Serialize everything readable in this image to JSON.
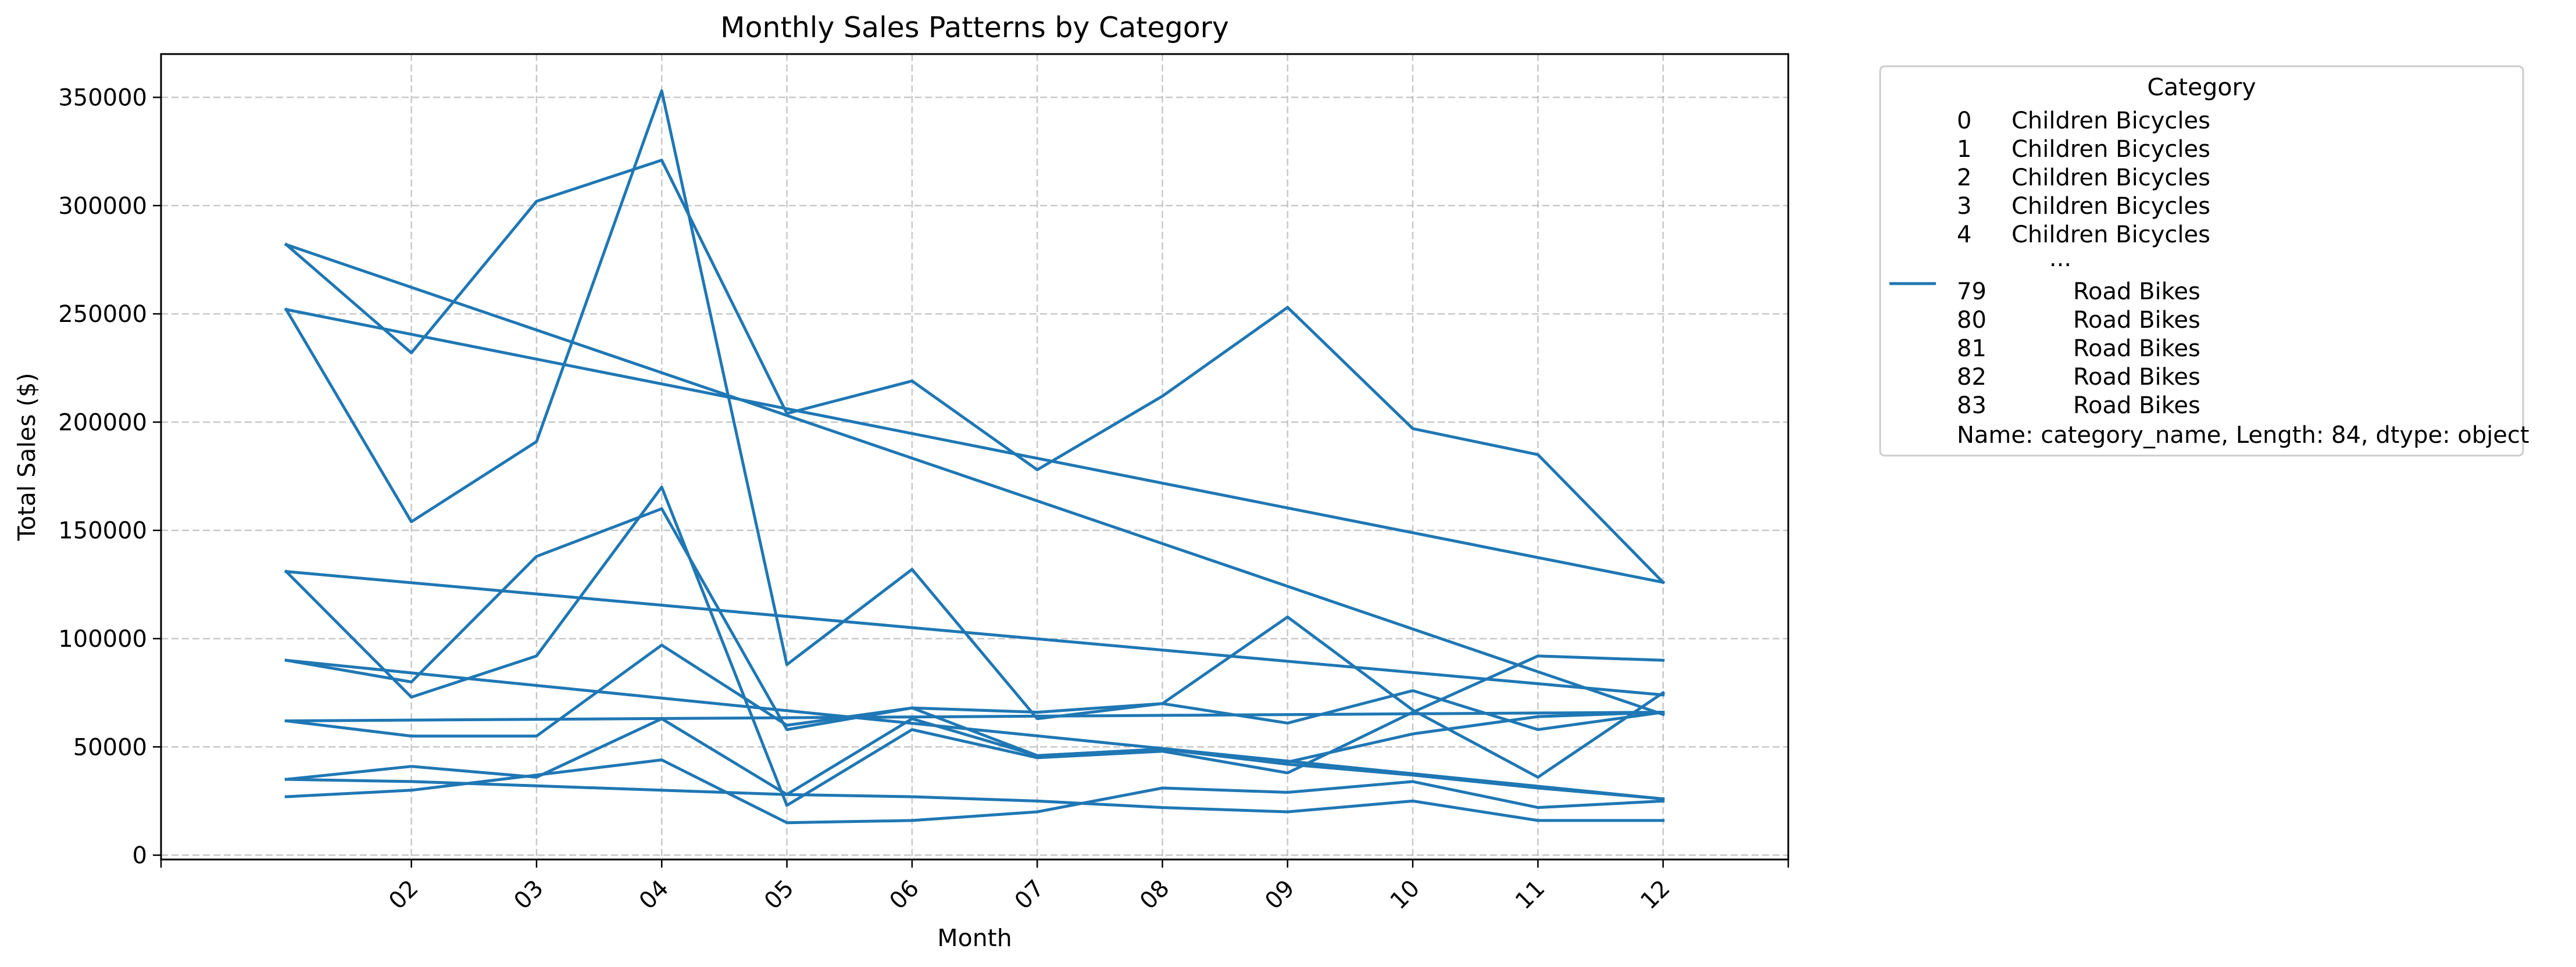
{
  "chart_data": {
    "type": "line",
    "title": "Monthly Sales Patterns by Category",
    "xlabel": "Month",
    "ylabel": "Total Sales ($)",
    "x_tick_labels": [
      "02",
      "03",
      "04",
      "05",
      "06",
      "07",
      "08",
      "09",
      "10",
      "11",
      "12"
    ],
    "x_tick_rotation_deg": 45,
    "xlim": [
      0,
      13
    ],
    "y_ticks": [
      0,
      50000,
      100000,
      150000,
      200000,
      250000,
      300000,
      350000
    ],
    "ylim": [
      -2000,
      370000
    ],
    "grid": true,
    "grid_style": "dashed",
    "line_color": "#1f77b4",
    "legend": {
      "title": "Category",
      "placement": "outside-right",
      "rows": [
        {
          "index": "0",
          "name": "Children Bicycles"
        },
        {
          "index": "1",
          "name": "Children Bicycles"
        },
        {
          "index": "2",
          "name": "Children Bicycles"
        },
        {
          "index": "3",
          "name": "Children Bicycles"
        },
        {
          "index": "4",
          "name": "Children Bicycles"
        },
        {
          "index": "",
          "name": "..."
        },
        {
          "index": "79",
          "name": "Road Bikes"
        },
        {
          "index": "80",
          "name": "Road Bikes"
        },
        {
          "index": "81",
          "name": "Road Bikes"
        },
        {
          "index": "82",
          "name": "Road Bikes"
        },
        {
          "index": "83",
          "name": "Road Bikes"
        }
      ],
      "footer": "Name: category_name, Length: 84, dtype: object"
    },
    "series": [
      {
        "x": [
          1,
          12
        ],
        "y": [
          282000,
          65000
        ]
      },
      {
        "x": [
          1,
          2,
          3,
          4,
          5,
          6,
          7,
          8,
          9,
          10,
          11,
          12
        ],
        "y": [
          252000,
          154000,
          191000,
          353000,
          88000,
          132000,
          63000,
          70000,
          61000,
          76000,
          58000,
          66000
        ]
      },
      {
        "x": [
          1,
          2,
          3,
          4,
          5,
          6,
          7,
          8,
          9,
          10,
          11,
          12
        ],
        "y": [
          282000,
          232000,
          302000,
          321000,
          204000,
          219000,
          178000,
          212000,
          253000,
          197000,
          185000,
          126000
        ]
      },
      {
        "x": [
          1,
          12
        ],
        "y": [
          252000,
          126000
        ]
      },
      {
        "x": [
          1,
          2,
          3,
          4,
          5,
          6,
          7,
          8,
          9,
          10,
          11,
          12
        ],
        "y": [
          131000,
          73000,
          92000,
          170000,
          23000,
          58000,
          45000,
          48000,
          38000,
          66000,
          92000,
          90000
        ]
      },
      {
        "x": [
          1,
          12
        ],
        "y": [
          131000,
          74000
        ]
      },
      {
        "x": [
          1,
          2,
          3,
          4,
          5,
          6,
          7,
          8,
          9,
          10,
          11,
          12
        ],
        "y": [
          90000,
          80000,
          138000,
          160000,
          58000,
          68000,
          66000,
          70000,
          110000,
          67000,
          36000,
          75000
        ]
      },
      {
        "x": [
          1,
          12
        ],
        "y": [
          90000,
          26000
        ]
      },
      {
        "x": [
          1,
          2,
          3,
          4,
          5,
          6,
          7,
          8,
          9,
          10,
          11,
          12
        ],
        "y": [
          62000,
          55000,
          55000,
          97000,
          60000,
          68000,
          46000,
          49000,
          43000,
          56000,
          64000,
          66000
        ]
      },
      {
        "x": [
          1,
          12
        ],
        "y": [
          62000,
          66000
        ]
      },
      {
        "x": [
          1,
          2,
          3,
          4,
          5,
          6,
          7,
          8,
          9,
          10,
          11,
          12
        ],
        "y": [
          35000,
          41000,
          36000,
          63000,
          28000,
          63000,
          46000,
          49000,
          42000,
          37000,
          31000,
          26000
        ]
      },
      {
        "x": [
          1,
          2,
          3,
          4,
          5,
          6,
          7,
          8,
          9,
          10,
          11,
          12
        ],
        "y": [
          27000,
          30000,
          37000,
          44000,
          15000,
          16000,
          20000,
          31000,
          29000,
          34000,
          22000,
          25000
        ]
      },
      {
        "x": [
          1,
          2,
          3,
          4,
          5,
          6,
          7,
          8,
          9,
          10,
          11,
          12
        ],
        "y": [
          35000,
          34000,
          32000,
          30000,
          28000,
          27000,
          25000,
          22000,
          20000,
          25000,
          16000,
          16000
        ]
      }
    ]
  }
}
